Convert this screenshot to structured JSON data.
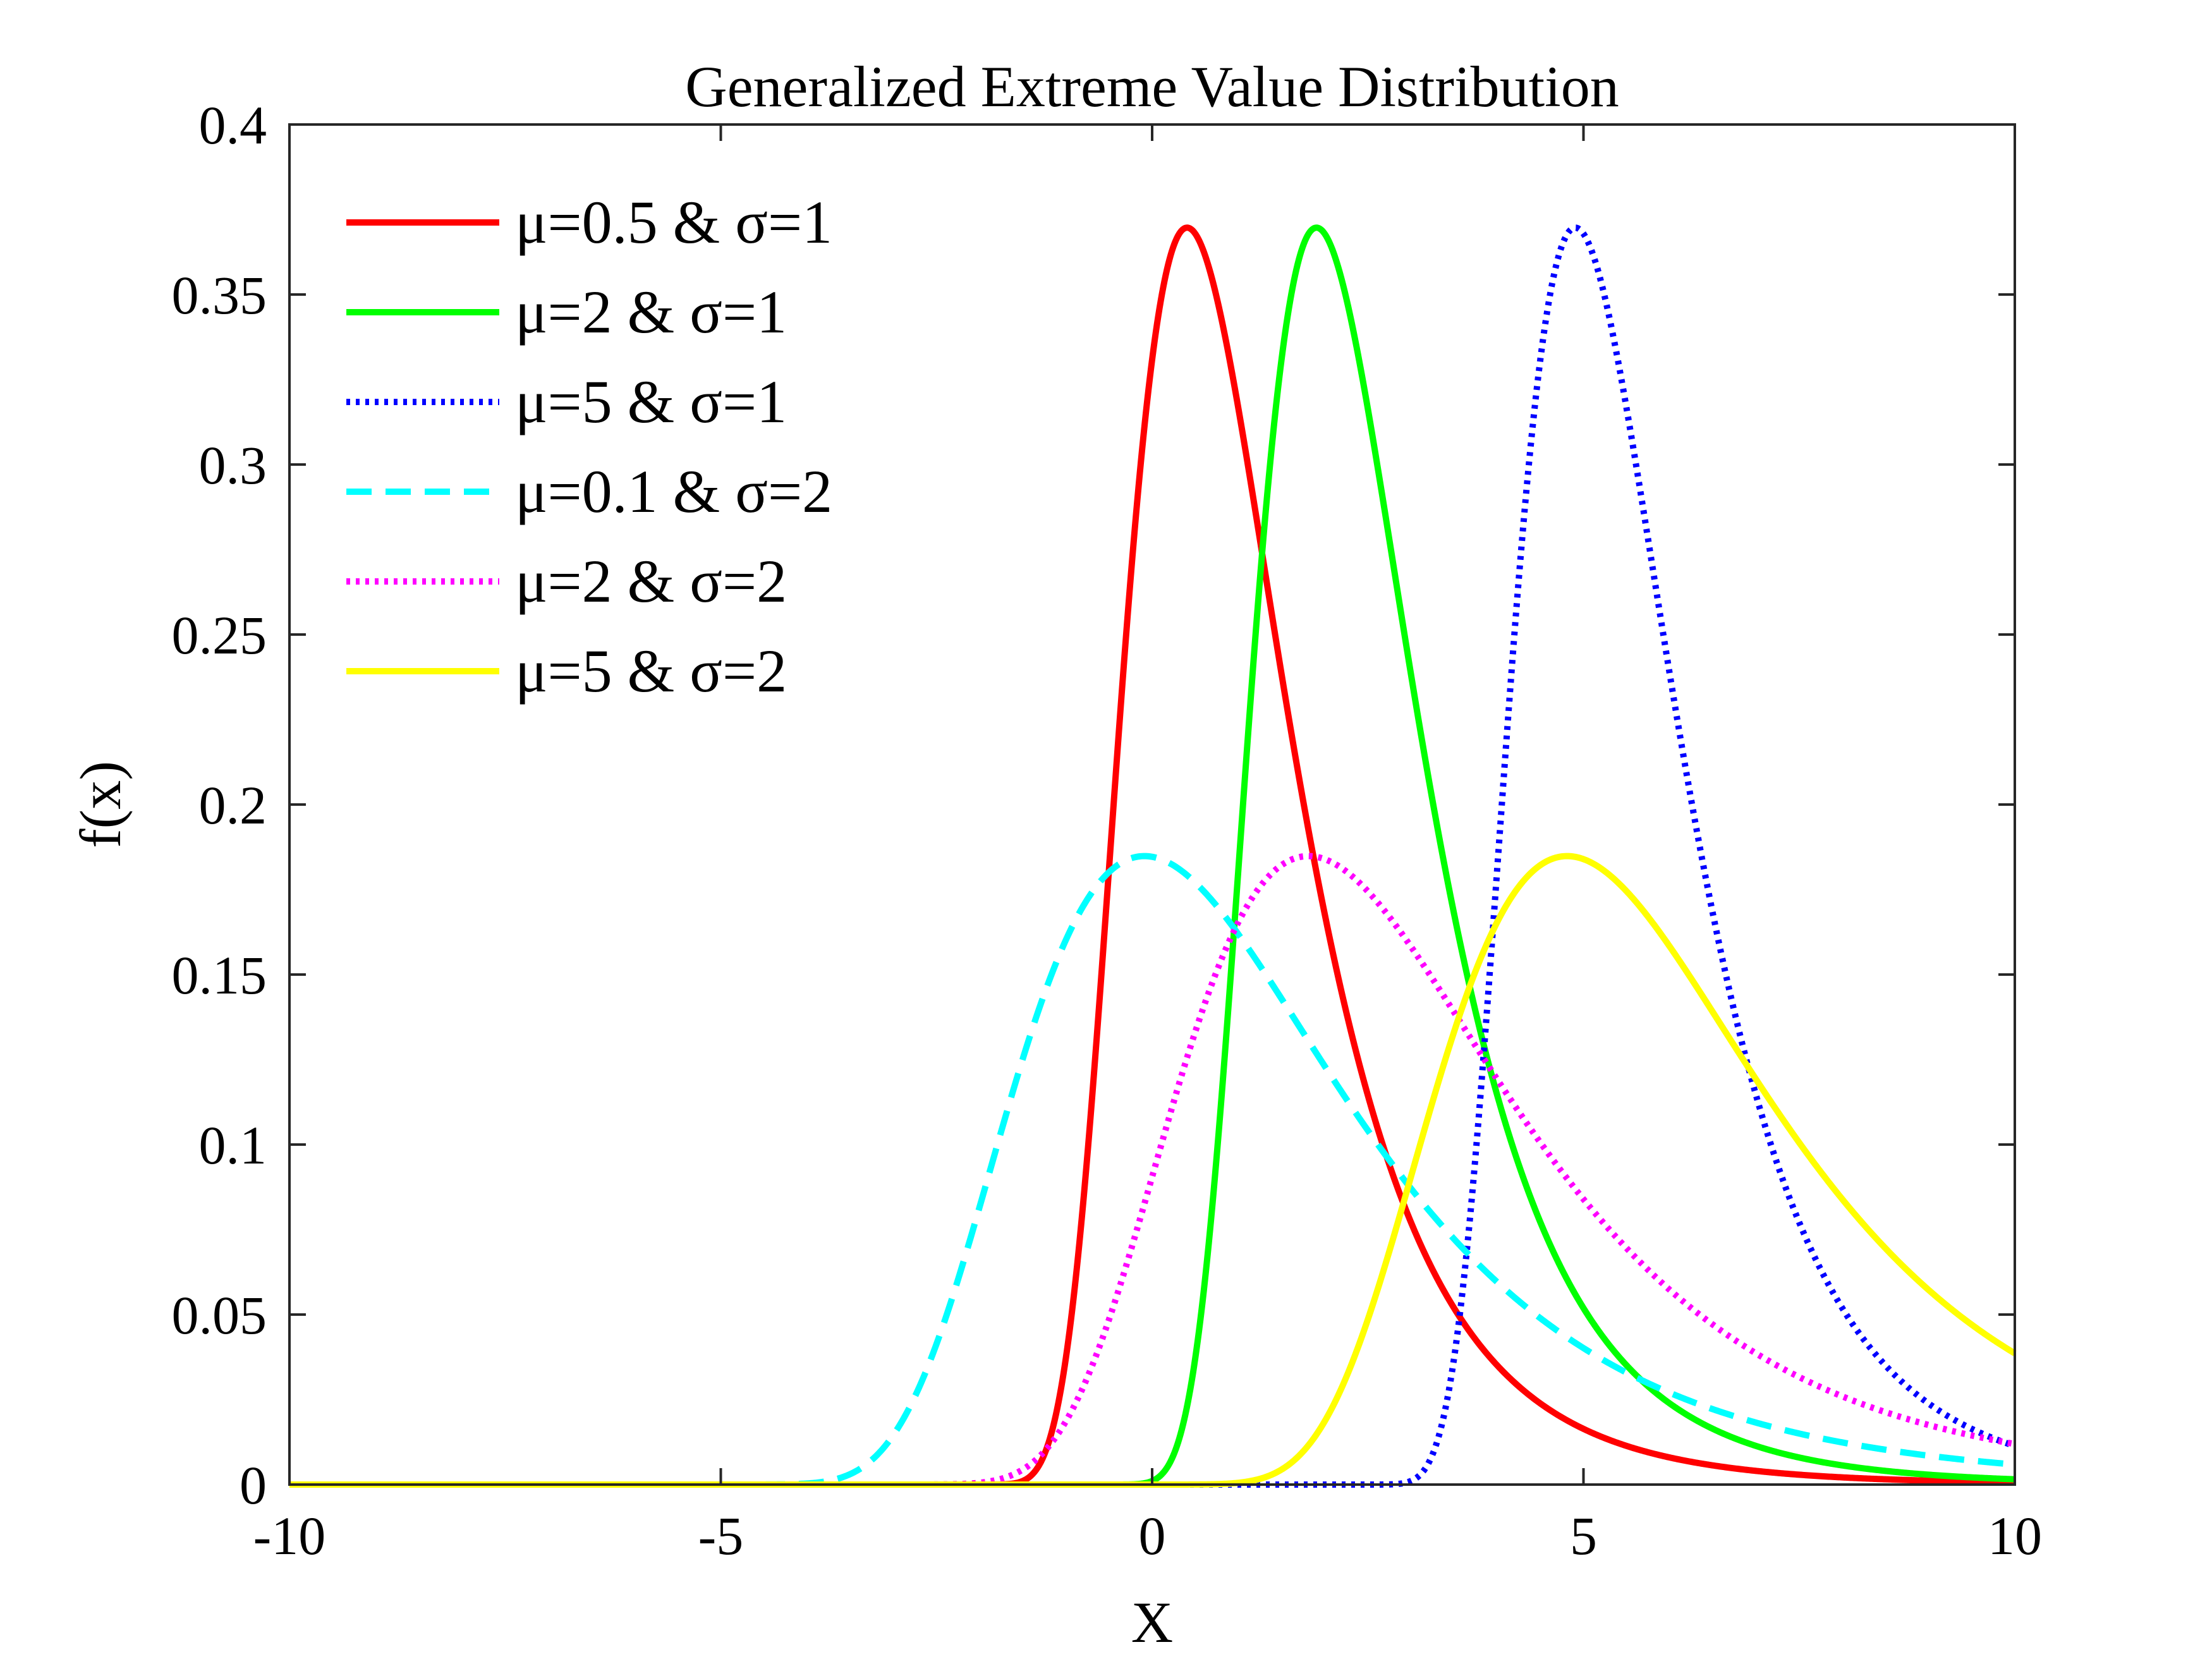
{
  "chart_data": {
    "type": "line",
    "title": "Generalized Extreme Value Distribution",
    "xlabel": "X",
    "ylabel": "f(x)",
    "xlim": [
      -10,
      10
    ],
    "ylim": [
      0,
      0.4
    ],
    "xticks": [
      -10,
      -5,
      0,
      5,
      10
    ],
    "xtick_labels": [
      "-10",
      "-5",
      "0",
      "5",
      "10"
    ],
    "yticks": [
      0,
      0.05,
      0.1,
      0.15,
      0.2,
      0.25,
      0.3,
      0.35,
      0.4
    ],
    "ytick_labels": [
      "0",
      "0.05",
      "0.1",
      "0.15",
      "0.2",
      "0.25",
      "0.3",
      "0.35",
      "0.4"
    ],
    "grid": false,
    "legend_position": "top-left",
    "distribution": "generalized-extreme-value",
    "shape_k": 0.1,
    "series": [
      {
        "name": "μ=0.5 & σ=1",
        "mu": 0.5,
        "sigma": 1,
        "color": "#ff0000",
        "style": "solid"
      },
      {
        "name": "μ=2 & σ=1",
        "mu": 2,
        "sigma": 1,
        "color": "#00ff00",
        "style": "solid"
      },
      {
        "name": "μ=5 & σ=1",
        "mu": 5,
        "sigma": 1,
        "color": "#0000ff",
        "style": "dotted"
      },
      {
        "name": "μ=0.1 & σ=2",
        "mu": 0.1,
        "sigma": 2,
        "color": "#00ffff",
        "style": "dashed"
      },
      {
        "name": "μ=2 & σ=2",
        "mu": 2,
        "sigma": 2,
        "color": "#ff00ff",
        "style": "dotted"
      },
      {
        "name": "μ=5 & σ=2",
        "mu": 5,
        "sigma": 2,
        "color": "#ffff00",
        "style": "solid"
      }
    ]
  }
}
